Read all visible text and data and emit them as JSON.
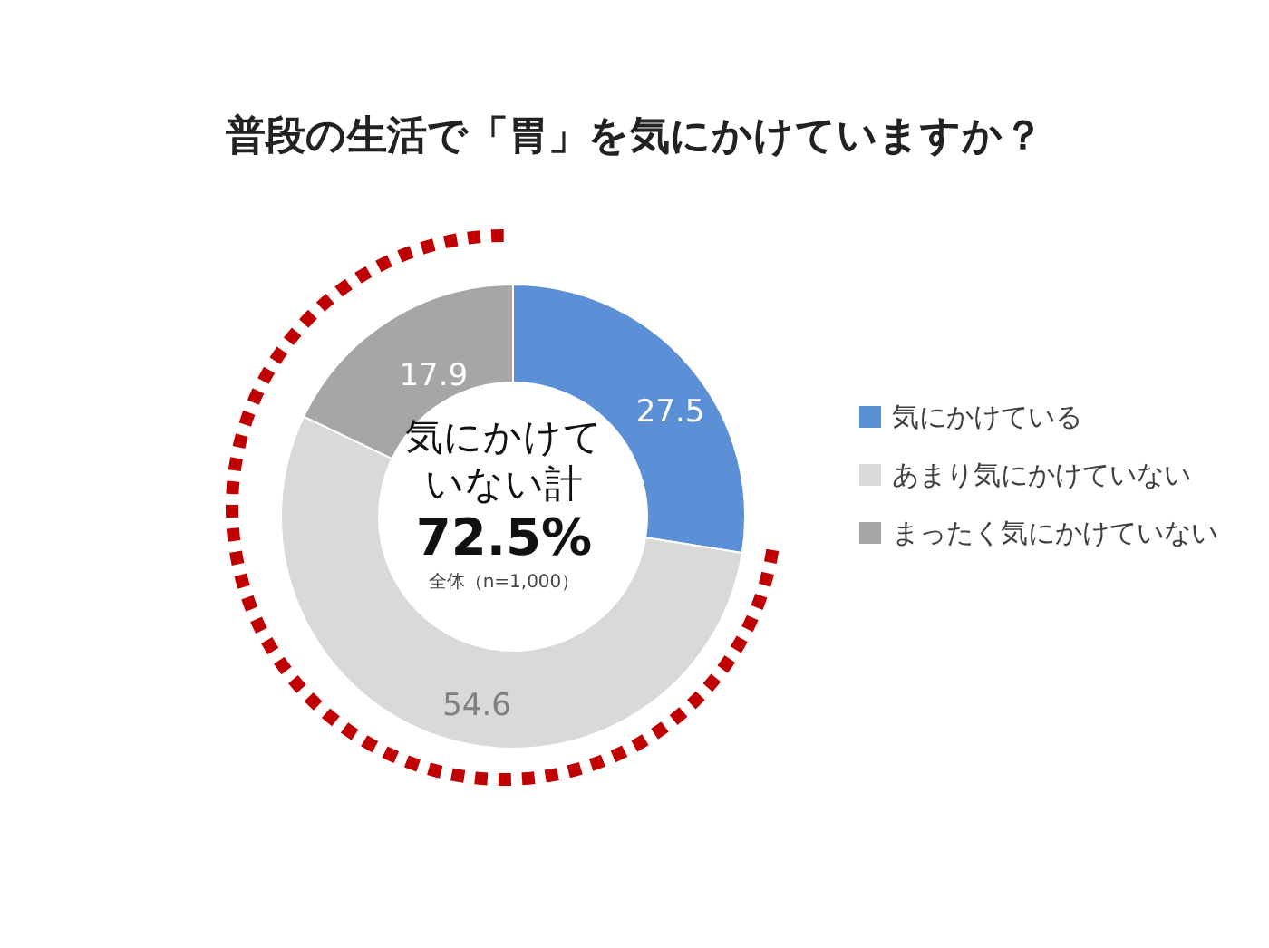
{
  "chart_data": {
    "type": "donut",
    "title": "普段の生活で「胃」を気にかけていますか？",
    "categories": [
      "気にかけている",
      "あまり気にかけていない",
      "まったく気にかけていない"
    ],
    "values": [
      27.5,
      54.6,
      17.9
    ],
    "colors": [
      "#5b8fd6",
      "#d9d9d9",
      "#a6a6a6"
    ],
    "data_labels": true,
    "legend": "right",
    "annotations": [
      "気にかけていない計",
      "72.5%",
      "全体（n=1,000）"
    ]
  }
}
